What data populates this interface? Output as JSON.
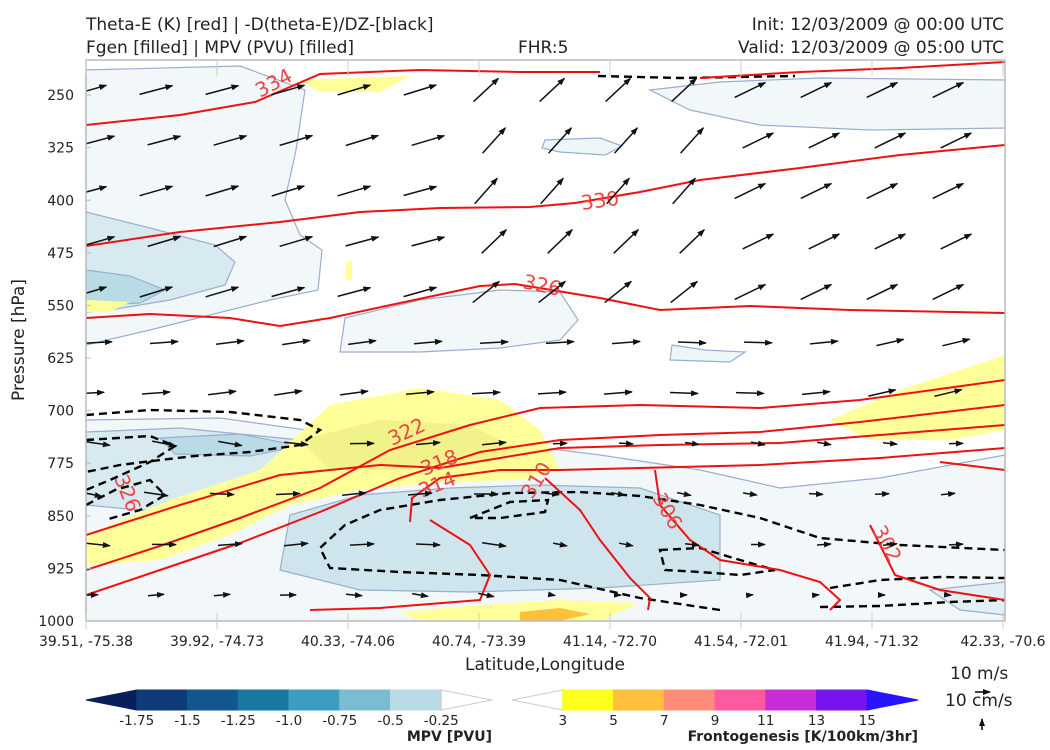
{
  "header": {
    "title_line1": "Theta-E (K) [red] | -D(theta-E)/DZ-[black]",
    "title_line2": "Fgen [filled] | MPV (PVU) [filled]",
    "fhr": "FHR:5",
    "init": "Init: 12/03/2009 @ 00:00 UTC",
    "valid": "Valid: 12/03/2009 @ 05:00 UTC"
  },
  "chart_data": {
    "type": "cross-section",
    "xlabel": "Latitude,Longitude",
    "ylabel": "Pressure [hPa]",
    "x_ticks": [
      "39.51, -75.38",
      "39.92, -74.73",
      "40.33, -74.06",
      "40.74, -73.39",
      "41.14, -72.70",
      "41.54, -72.01",
      "41.94, -71.32",
      "42.33, -70.6"
    ],
    "y_ticks": [
      250,
      325,
      400,
      475,
      550,
      625,
      700,
      775,
      850,
      925,
      1000
    ],
    "ylim": [
      1000,
      200
    ],
    "theta_e_labels": [
      "334",
      "330",
      "326",
      "322",
      "318",
      "314",
      "310",
      "306",
      "302",
      "326"
    ],
    "reference_vectors": [
      "10 m/s",
      "10 cm/s"
    ],
    "colorbars": [
      {
        "title": "MPV [PVU]",
        "ticks": [
          "-1.75",
          "-1.5",
          "-1.25",
          "-1.0",
          "-0.75",
          "-0.5",
          "-0.25"
        ],
        "colors": [
          "#0a1e5c",
          "#0d3c78",
          "#12578f",
          "#1a79a3",
          "#3d9dbf",
          "#7bbcd2",
          "#b9dbe6",
          "#ffffff"
        ]
      },
      {
        "title": "Frontogenesis [K/100km/3hr]",
        "ticks": [
          "3",
          "5",
          "7",
          "9",
          "11",
          "13",
          "15"
        ],
        "colors": [
          "#ffffff",
          "#ffff1e",
          "#ffc03c",
          "#ff8c78",
          "#ff5aa0",
          "#c82ed8",
          "#7814f0",
          "#2814ff"
        ]
      }
    ]
  }
}
